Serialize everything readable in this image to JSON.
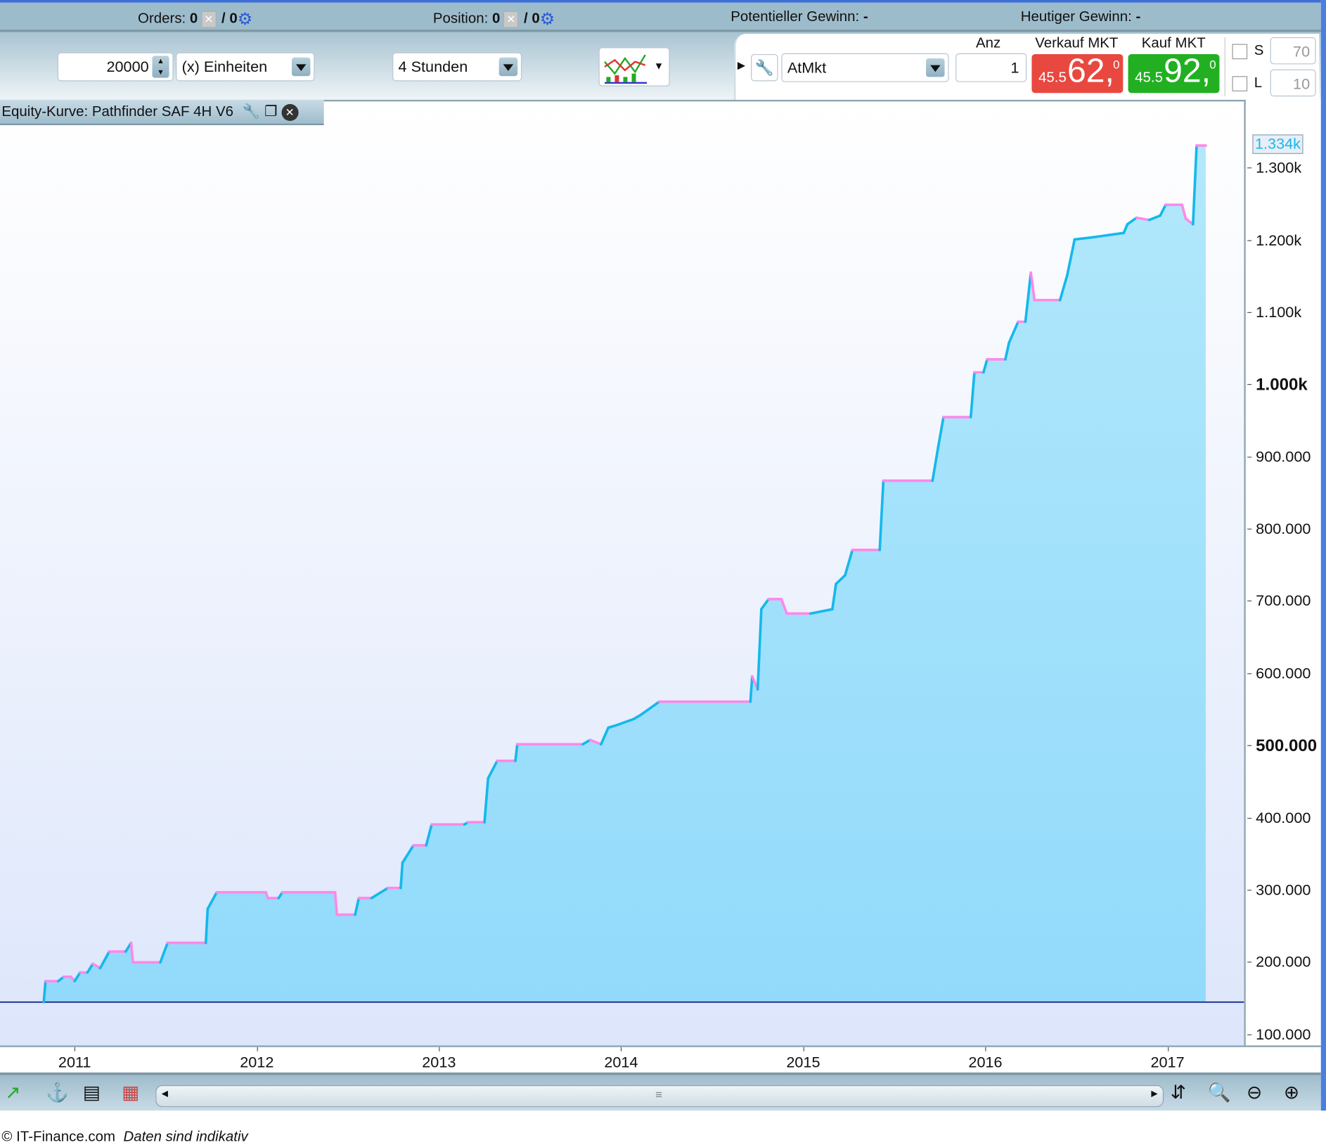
{
  "topbar": {
    "orders_label": "Orders:",
    "orders_value": "0",
    "orders_pending": "/ 0",
    "position_label": "Position:",
    "position_value": "0",
    "position_pending": "/ 0",
    "potential_label": "Potentieller Gewinn:",
    "potential_value": "-",
    "today_label": "Heutiger Gewinn:",
    "today_value": "-"
  },
  "toolbar": {
    "quantity": "20000",
    "unit": "(x) Einheiten",
    "timeframe": "4 Stunden",
    "order_type": "AtMkt",
    "anz_label": "Anz",
    "anz_value": "1",
    "sell_label": "Verkauf MKT",
    "buy_label": "Kauf MKT",
    "sell": {
      "small": "45.5",
      "large": "62,",
      "tiny": "0",
      "color": "#e8483f"
    },
    "buy": {
      "small": "45.5",
      "large": "92,",
      "tiny": "0",
      "color": "#22b022"
    },
    "s_label": "S",
    "s_value": "70",
    "l_label": "L",
    "l_value": "10"
  },
  "chart_tab": {
    "title": "Equity-Kurve: Pathfinder SAF 4H V6"
  },
  "footer": {
    "copyright": "© IT-Finance.com",
    "disclaimer": "Daten sind indikativ"
  },
  "chart_data": {
    "type": "area",
    "title": "Equity-Kurve: Pathfinder SAF 4H V6",
    "xlim": [
      2010.59,
      2017.42
    ],
    "ylim": [
      88000,
      1395000
    ],
    "x_ticks": [
      2011,
      2012,
      2013,
      2014,
      2015,
      2016,
      2017
    ],
    "x_tick_labels": [
      "2011",
      "2012",
      "2013",
      "2014",
      "2015",
      "2016",
      "2017"
    ],
    "y_ticks": [
      100000,
      200000,
      300000,
      400000,
      500000,
      600000,
      700000,
      800000,
      900000,
      1000000,
      1100000,
      1200000,
      1300000
    ],
    "y_tick_labels": [
      "100.000",
      "200.000",
      "300.000",
      "400.000",
      "500.000",
      "600.000",
      "700.000",
      "800.000",
      "900.000",
      "1.000k",
      "1.100k",
      "1.200k",
      "1.300k"
    ],
    "bold_ticks": [
      "500.000",
      "1.000k"
    ],
    "baseline": 148000,
    "current_value_label": "1.334k",
    "colors": {
      "rise": "#14b8ec",
      "fall": "#ff88e8",
      "fill": "#a2e2fb",
      "baseline": "#1a2a8a",
      "bg_top": "#ffffff",
      "bg_bottom": "#dde6fb"
    },
    "points": [
      [
        2010.83,
        148000
      ],
      [
        2010.84,
        177000
      ],
      [
        2010.91,
        177000
      ],
      [
        2010.94,
        183000
      ],
      [
        2010.98,
        183000
      ],
      [
        2011.0,
        177000
      ],
      [
        2011.03,
        189000
      ],
      [
        2011.07,
        189000
      ],
      [
        2011.1,
        201000
      ],
      [
        2011.14,
        195000
      ],
      [
        2011.19,
        218000
      ],
      [
        2011.28,
        218000
      ],
      [
        2011.31,
        230000
      ],
      [
        2011.32,
        203000
      ],
      [
        2011.47,
        203000
      ],
      [
        2011.51,
        230000
      ],
      [
        2011.72,
        230000
      ],
      [
        2011.73,
        277000
      ],
      [
        2011.78,
        300000
      ],
      [
        2012.05,
        300000
      ],
      [
        2012.06,
        292000
      ],
      [
        2012.12,
        292000
      ],
      [
        2012.14,
        300000
      ],
      [
        2012.43,
        300000
      ],
      [
        2012.44,
        269000
      ],
      [
        2012.54,
        269000
      ],
      [
        2012.56,
        292000
      ],
      [
        2012.63,
        292000
      ],
      [
        2012.72,
        306000
      ],
      [
        2012.79,
        306000
      ],
      [
        2012.8,
        341000
      ],
      [
        2012.86,
        365000
      ],
      [
        2012.93,
        365000
      ],
      [
        2012.96,
        394000
      ],
      [
        2013.14,
        394000
      ],
      [
        2013.16,
        397000
      ],
      [
        2013.25,
        397000
      ],
      [
        2013.27,
        458000
      ],
      [
        2013.32,
        482000
      ],
      [
        2013.42,
        482000
      ],
      [
        2013.43,
        505000
      ],
      [
        2013.79,
        505000
      ],
      [
        2013.83,
        511000
      ],
      [
        2013.89,
        505000
      ],
      [
        2013.93,
        528000
      ],
      [
        2013.97,
        531000
      ],
      [
        2014.07,
        540000
      ],
      [
        2014.11,
        546000
      ],
      [
        2014.21,
        564000
      ],
      [
        2014.48,
        564000
      ],
      [
        2014.71,
        564000
      ],
      [
        2014.72,
        599000
      ],
      [
        2014.75,
        581000
      ],
      [
        2014.77,
        692000
      ],
      [
        2014.81,
        706000
      ],
      [
        2014.88,
        706000
      ],
      [
        2014.91,
        686000
      ],
      [
        2015.04,
        686000
      ],
      [
        2015.16,
        692000
      ],
      [
        2015.18,
        727000
      ],
      [
        2015.23,
        739000
      ],
      [
        2015.27,
        774000
      ],
      [
        2015.42,
        774000
      ],
      [
        2015.44,
        870000
      ],
      [
        2015.71,
        870000
      ],
      [
        2015.74,
        915000
      ],
      [
        2015.77,
        958000
      ],
      [
        2015.92,
        958000
      ],
      [
        2015.94,
        1020000
      ],
      [
        2015.99,
        1020000
      ],
      [
        2016.01,
        1038000
      ],
      [
        2016.11,
        1038000
      ],
      [
        2016.13,
        1061000
      ],
      [
        2016.18,
        1090000
      ],
      [
        2016.22,
        1090000
      ],
      [
        2016.25,
        1158000
      ],
      [
        2016.27,
        1120000
      ],
      [
        2016.41,
        1120000
      ],
      [
        2016.45,
        1155000
      ],
      [
        2016.49,
        1204000
      ],
      [
        2016.59,
        1207000
      ],
      [
        2016.76,
        1213000
      ],
      [
        2016.78,
        1225000
      ],
      [
        2016.83,
        1234000
      ],
      [
        2016.9,
        1231000
      ],
      [
        2016.96,
        1237000
      ],
      [
        2016.99,
        1252000
      ],
      [
        2017.08,
        1252000
      ],
      [
        2017.1,
        1233000
      ],
      [
        2017.14,
        1225000
      ],
      [
        2017.16,
        1334000
      ],
      [
        2017.21,
        1334000
      ]
    ]
  }
}
